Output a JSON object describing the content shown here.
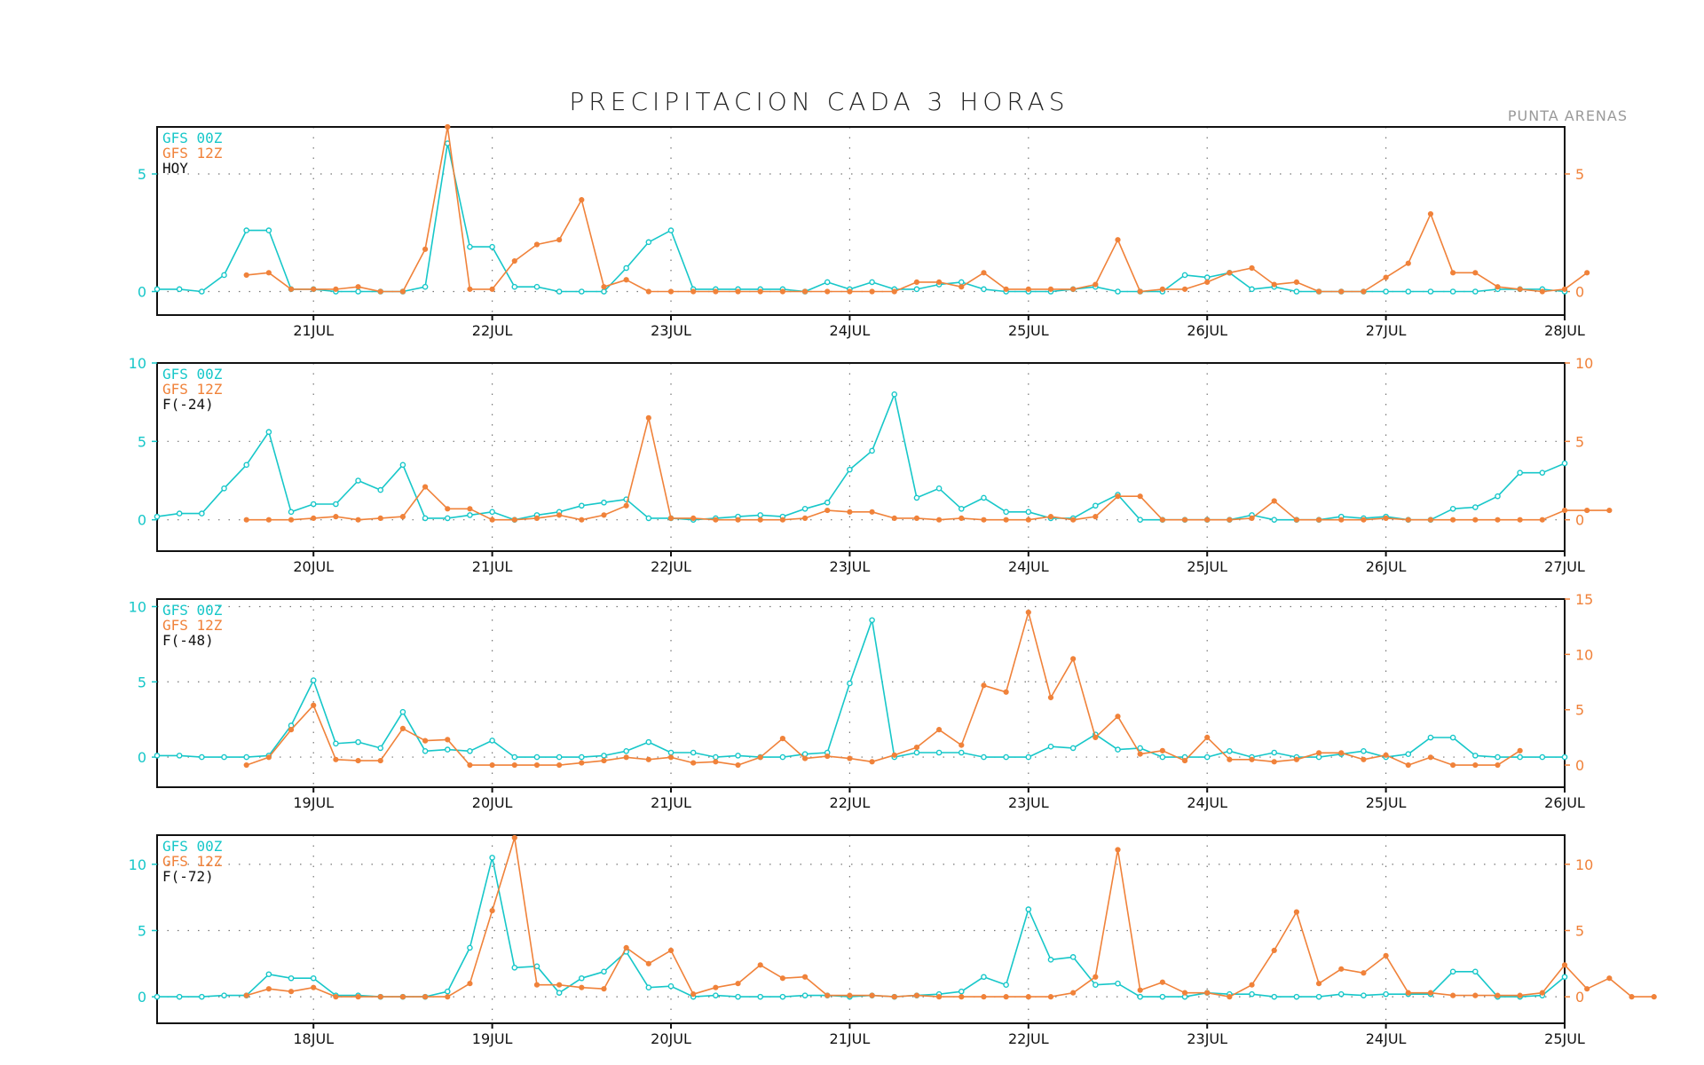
{
  "title": "PRECIPITACION CADA 3 HORAS",
  "station": "PUNTA ARENAS",
  "colors": {
    "gfs00": "#17c7c9",
    "gfs12": "#f0823a",
    "frame": "#111111",
    "grid": "#777777",
    "label": "#111111"
  },
  "chart_data": [
    {
      "type": "line",
      "legend": [
        "GFS 00Z",
        "GFS 12Z",
        "HOY"
      ],
      "x_ticks": [
        "21JUL",
        "22JUL",
        "23JUL",
        "24JUL",
        "25JUL",
        "26JUL",
        "27JUL",
        "28JUL"
      ],
      "x_tick_pos": [
        7,
        15,
        23,
        31,
        39,
        47,
        55,
        63
      ],
      "xlim": [
        0,
        63
      ],
      "y_left": {
        "ylim": [
          -1,
          7
        ],
        "ticks": [
          0,
          5
        ]
      },
      "y_right": {
        "ylim": [
          -1,
          7
        ],
        "ticks": [
          0,
          5
        ]
      },
      "series": [
        {
          "name": "GFS 00Z",
          "axis": "left",
          "start": 0,
          "values": [
            0.1,
            0.1,
            0,
            0.7,
            2.6,
            2.6,
            0.1,
            0.1,
            0,
            0,
            0,
            0,
            0.2,
            6.3,
            1.9,
            1.9,
            0.2,
            0.2,
            0,
            0,
            0,
            1.0,
            2.1,
            2.6,
            0.1,
            0.1,
            0.1,
            0.1,
            0.1,
            0,
            0.4,
            0.1,
            0.4,
            0.1,
            0.1,
            0.3,
            0.4,
            0.1,
            0,
            0,
            0,
            0.1,
            0.2,
            0,
            0,
            0,
            0.7,
            0.6,
            0.8,
            0.1,
            0.2,
            0,
            0,
            0,
            0,
            0,
            0,
            0,
            0,
            0,
            0.1,
            0.1,
            0.1,
            0
          ]
        },
        {
          "name": "GFS 12Z",
          "axis": "right",
          "start": 4,
          "values": [
            0.7,
            0.8,
            0.1,
            0.1,
            0.1,
            0.2,
            0,
            0,
            1.8,
            7.1,
            0.1,
            0.1,
            1.3,
            2.0,
            2.2,
            3.9,
            0.2,
            0.5,
            0,
            0,
            0,
            0,
            0,
            0,
            0,
            0,
            0,
            0,
            0,
            0,
            0.4,
            0.4,
            0.2,
            0.8,
            0.1,
            0.1,
            0.1,
            0.1,
            0.3,
            2.2,
            0,
            0.1,
            0.1,
            0.4,
            0.8,
            1.0,
            0.3,
            0.4,
            0,
            0,
            0,
            0.6,
            1.2,
            3.3,
            0.8,
            0.8,
            0.2,
            0.1,
            0,
            0.1,
            0.8
          ]
        }
      ]
    },
    {
      "type": "line",
      "legend": [
        "GFS 00Z",
        "GFS 12Z",
        "F(-24)"
      ],
      "x_ticks": [
        "20JUL",
        "21JUL",
        "22JUL",
        "23JUL",
        "24JUL",
        "25JUL",
        "26JUL",
        "27JUL"
      ],
      "x_tick_pos": [
        7,
        15,
        23,
        31,
        39,
        47,
        55,
        63
      ],
      "xlim": [
        0,
        63
      ],
      "y_left": {
        "ylim": [
          -2,
          10
        ],
        "ticks": [
          0,
          5,
          10
        ]
      },
      "y_right": {
        "ylim": [
          -2,
          10
        ],
        "ticks": [
          0,
          5,
          10
        ]
      },
      "series": [
        {
          "name": "GFS 00Z",
          "axis": "left",
          "start": 0,
          "values": [
            0.2,
            0.4,
            0.4,
            2.0,
            3.5,
            5.6,
            0.5,
            1.0,
            1.0,
            2.5,
            1.9,
            3.5,
            0.1,
            0.1,
            0.3,
            0.5,
            0,
            0.3,
            0.5,
            0.9,
            1.1,
            1.3,
            0.1,
            0.1,
            0,
            0.1,
            0.2,
            0.3,
            0.2,
            0.7,
            1.1,
            3.2,
            4.4,
            8.0,
            1.4,
            2.0,
            0.7,
            1.4,
            0.5,
            0.5,
            0.1,
            0.1,
            0.9,
            1.6,
            0,
            0,
            0,
            0,
            0,
            0.3,
            0,
            0,
            0,
            0.2,
            0.1,
            0.2,
            0,
            0,
            0.7,
            0.8,
            1.5,
            3.0,
            3.0,
            3.6
          ]
        },
        {
          "name": "GFS 12Z",
          "axis": "right",
          "start": 4,
          "values": [
            0,
            0,
            0,
            0.1,
            0.2,
            0,
            0.1,
            0.2,
            2.1,
            0.7,
            0.7,
            0,
            0,
            0.1,
            0.3,
            0,
            0.3,
            0.9,
            6.5,
            0.1,
            0.1,
            0,
            0,
            0,
            0,
            0.1,
            0.6,
            0.5,
            0.5,
            0.1,
            0.1,
            0,
            0.1,
            0,
            0,
            0,
            0.2,
            0,
            0.2,
            1.5,
            1.5,
            0,
            0,
            0,
            0,
            0.1,
            1.2,
            0,
            0,
            0,
            0,
            0.1,
            0,
            0,
            0,
            0,
            0,
            0,
            0,
            0.6,
            0.6,
            0.6
          ]
        }
      ]
    },
    {
      "type": "line",
      "legend": [
        "GFS 00Z",
        "GFS 12Z",
        "F(-48)"
      ],
      "x_ticks": [
        "19JUL",
        "20JUL",
        "21JUL",
        "22JUL",
        "23JUL",
        "24JUL",
        "25JUL",
        "26JUL"
      ],
      "x_tick_pos": [
        7,
        15,
        23,
        31,
        39,
        47,
        55,
        63
      ],
      "xlim": [
        0,
        63
      ],
      "y_left": {
        "ylim": [
          -2,
          10.5
        ],
        "ticks": [
          0,
          5,
          10
        ]
      },
      "y_right": {
        "ylim": [
          -2,
          15
        ],
        "ticks": [
          0,
          5,
          10,
          15
        ]
      },
      "series": [
        {
          "name": "GFS 00Z",
          "axis": "left",
          "start": 0,
          "values": [
            0.1,
            0.1,
            0,
            0,
            0,
            0.1,
            2.1,
            5.1,
            0.9,
            1.0,
            0.6,
            3.0,
            0.4,
            0.5,
            0.4,
            1.1,
            0,
            0,
            0,
            0,
            0.1,
            0.4,
            1.0,
            0.3,
            0.3,
            0,
            0.1,
            0,
            0,
            0.2,
            0.3,
            4.9,
            9.1,
            0,
            0.3,
            0.3,
            0.3,
            0,
            0,
            0,
            0.7,
            0.6,
            1.5,
            0.5,
            0.6,
            0,
            0,
            0,
            0.4,
            0,
            0.3,
            0,
            0,
            0.2,
            0.4,
            0,
            0.2,
            1.3,
            1.3,
            0.1,
            0,
            0,
            0,
            0
          ]
        },
        {
          "name": "GFS 12Z",
          "axis": "right",
          "start": 4,
          "values": [
            0,
            0.7,
            3.2,
            5.4,
            0.5,
            0.4,
            0.4,
            3.3,
            2.2,
            2.3,
            0,
            0,
            0,
            0,
            0,
            0.2,
            0.4,
            0.7,
            0.5,
            0.7,
            0.2,
            0.3,
            0,
            0.7,
            2.4,
            0.6,
            0.8,
            0.6,
            0.3,
            0.9,
            1.6,
            3.2,
            1.8,
            7.2,
            6.6,
            13.8,
            6.1,
            9.6,
            2.5,
            4.4,
            1.0,
            1.3,
            0.4,
            2.5,
            0.5,
            0.5,
            0.3,
            0.5,
            1.1,
            1.1,
            0.5,
            0.9,
            0,
            0.7,
            0,
            0,
            0,
            1.3
          ]
        }
      ]
    },
    {
      "type": "line",
      "legend": [
        "GFS 00Z",
        "GFS 12Z",
        "F(-72)"
      ],
      "x_ticks": [
        "18JUL",
        "19JUL",
        "20JUL",
        "21JUL",
        "22JUL",
        "23JUL",
        "24JUL",
        "25JUL"
      ],
      "x_tick_pos": [
        7,
        15,
        23,
        31,
        39,
        47,
        55,
        63
      ],
      "xlim": [
        0,
        63
      ],
      "y_left": {
        "ylim": [
          -2,
          12.2
        ],
        "ticks": [
          0,
          5,
          10
        ]
      },
      "y_right": {
        "ylim": [
          -2,
          12.2
        ],
        "ticks": [
          0,
          5,
          10
        ]
      },
      "series": [
        {
          "name": "GFS 00Z",
          "axis": "left",
          "start": 0,
          "values": [
            0,
            0,
            0,
            0.1,
            0.1,
            1.7,
            1.4,
            1.4,
            0.1,
            0.1,
            0,
            0,
            0,
            0.4,
            3.7,
            10.5,
            2.2,
            2.3,
            0.3,
            1.4,
            1.9,
            3.4,
            0.7,
            0.8,
            0,
            0.1,
            0,
            0,
            0,
            0.1,
            0.1,
            0,
            0.1,
            0,
            0.1,
            0.2,
            0.4,
            1.5,
            0.9,
            6.6,
            2.8,
            3.0,
            0.9,
            1.0,
            0,
            0,
            0,
            0.3,
            0.2,
            0.2,
            0,
            0,
            0,
            0.2,
            0.1,
            0.2,
            0.2,
            0.2,
            1.9,
            1.9,
            0,
            0,
            0.1,
            1.5
          ]
        },
        {
          "name": "GFS 12Z",
          "axis": "right",
          "start": 4,
          "values": [
            0.1,
            0.6,
            0.4,
            0.7,
            0,
            0,
            0,
            0,
            0,
            0,
            1.0,
            6.5,
            12.0,
            0.9,
            0.9,
            0.7,
            0.6,
            3.7,
            2.5,
            3.5,
            0.2,
            0.7,
            1.0,
            2.4,
            1.4,
            1.5,
            0.1,
            0.1,
            0.1,
            0,
            0.1,
            0,
            0,
            0,
            0,
            0,
            0,
            0.3,
            1.5,
            11.1,
            0.5,
            1.1,
            0.3,
            0.3,
            0,
            0.9,
            3.5,
            6.4,
            1.0,
            2.1,
            1.8,
            3.1,
            0.3,
            0.3,
            0.1,
            0.1,
            0.1,
            0.1,
            0.3,
            2.4,
            0.6,
            1.4,
            0,
            0
          ]
        }
      ]
    }
  ]
}
